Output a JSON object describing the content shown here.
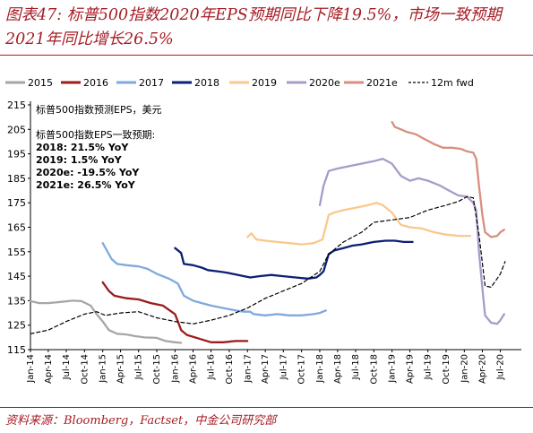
{
  "title": "图表47: 标普500指数2020年EPS预期同比下降19.5%，市场一致预期2021年同比增长26.5%",
  "source": "资料来源：Bloomberg，Factset，中金公司研究部",
  "chart_data": {
    "type": "line",
    "ylabel": "标普500指数预测EPS，美元",
    "ylim": [
      115,
      215
    ],
    "yticks": [
      115,
      125,
      135,
      145,
      155,
      165,
      175,
      185,
      195,
      205,
      215
    ],
    "xticks": [
      "Jan-14",
      "Apr-14",
      "Jul-14",
      "Oct-14",
      "Jan-15",
      "Apr-15",
      "Jul-15",
      "Oct-15",
      "Jan-16",
      "Apr-16",
      "Jul-16",
      "Oct-16",
      "Jan-17",
      "Apr-17",
      "Jul-17",
      "Oct-17",
      "Jan-18",
      "Apr-18",
      "Jul-18",
      "Oct-18",
      "Jan-19",
      "Apr-19",
      "Jul-19",
      "Oct-19",
      "Jan-20",
      "Apr-20",
      "Jul-20"
    ],
    "grid": false,
    "legend_position": "top",
    "annotation": {
      "title": "标普500指数EPS一致预期:",
      "lines": [
        "2018: 21.5% YoY",
        "2019: 1.5% YoY",
        "2020e: -19.5% YoY",
        "2021e: 26.5% YoY"
      ]
    },
    "series": [
      {
        "name": "2015",
        "color": "#a6a6a6",
        "dash": false,
        "points": [
          [
            "2014-01-01",
            134.8
          ],
          [
            "2014-02-15",
            134.0
          ],
          [
            "2014-04-01",
            134.0
          ],
          [
            "2014-06-01",
            134.5
          ],
          [
            "2014-08-01",
            135.0
          ],
          [
            "2014-09-15",
            134.8
          ],
          [
            "2014-11-01",
            133.0
          ],
          [
            "2014-12-01",
            129.5
          ],
          [
            "2015-01-01",
            126.5
          ],
          [
            "2015-02-01",
            123.0
          ],
          [
            "2015-03-15",
            121.5
          ],
          [
            "2015-05-01",
            121.2
          ],
          [
            "2015-06-15",
            120.5
          ],
          [
            "2015-08-01",
            120.0
          ],
          [
            "2015-10-01",
            119.8
          ],
          [
            "2015-11-15",
            118.5
          ],
          [
            "2015-12-31",
            118.0
          ],
          [
            "2016-01-31",
            117.8
          ]
        ]
      },
      {
        "name": "2016",
        "color": "#9c1b1b",
        "dash": false,
        "points": [
          [
            "2015-01-01",
            142.5
          ],
          [
            "2015-02-01",
            139.0
          ],
          [
            "2015-03-01",
            137.0
          ],
          [
            "2015-05-01",
            136.0
          ],
          [
            "2015-07-01",
            135.5
          ],
          [
            "2015-09-01",
            134.0
          ],
          [
            "2015-11-01",
            133.0
          ],
          [
            "2016-01-01",
            129.5
          ],
          [
            "2016-02-01",
            123.0
          ],
          [
            "2016-03-01",
            121.0
          ],
          [
            "2016-05-01",
            119.5
          ],
          [
            "2016-07-01",
            118.0
          ],
          [
            "2016-09-01",
            118.0
          ],
          [
            "2016-11-01",
            118.5
          ],
          [
            "2016-12-31",
            118.5
          ]
        ]
      },
      {
        "name": "2017",
        "color": "#7fa9dc",
        "dash": false,
        "points": [
          [
            "2015-01-01",
            158.5
          ],
          [
            "2015-02-15",
            152.0
          ],
          [
            "2015-03-15",
            150.0
          ],
          [
            "2015-05-01",
            149.5
          ],
          [
            "2015-07-01",
            149.0
          ],
          [
            "2015-08-15",
            148.0
          ],
          [
            "2015-10-01",
            146.0
          ],
          [
            "2015-12-01",
            144.0
          ],
          [
            "2016-01-15",
            142.0
          ],
          [
            "2016-02-15",
            137.0
          ],
          [
            "2016-04-01",
            135.0
          ],
          [
            "2016-05-15",
            134.0
          ],
          [
            "2016-07-01",
            133.0
          ],
          [
            "2016-09-01",
            132.0
          ],
          [
            "2016-11-01",
            131.0
          ],
          [
            "2016-12-15",
            130.5
          ],
          [
            "2017-01-15",
            130.5
          ],
          [
            "2017-02-01",
            129.5
          ],
          [
            "2017-04-01",
            129.0
          ],
          [
            "2017-06-01",
            129.5
          ],
          [
            "2017-08-01",
            129.0
          ],
          [
            "2017-10-01",
            129.0
          ],
          [
            "2017-12-01",
            129.5
          ],
          [
            "2018-01-01",
            130.0
          ],
          [
            "2018-02-01",
            131.0
          ]
        ]
      },
      {
        "name": "2018",
        "color": "#0b1f75",
        "dash": false,
        "points": [
          [
            "2016-01-01",
            156.5
          ],
          [
            "2016-02-01",
            154.5
          ],
          [
            "2016-02-15",
            150.0
          ],
          [
            "2016-04-01",
            149.5
          ],
          [
            "2016-05-15",
            148.5
          ],
          [
            "2016-06-15",
            147.5
          ],
          [
            "2016-08-01",
            147.0
          ],
          [
            "2016-09-15",
            146.5
          ],
          [
            "2016-11-15",
            145.5
          ],
          [
            "2016-12-15",
            145.0
          ],
          [
            "2017-01-15",
            144.5
          ],
          [
            "2017-03-01",
            145.0
          ],
          [
            "2017-05-01",
            145.5
          ],
          [
            "2017-07-01",
            145.0
          ],
          [
            "2017-09-01",
            144.5
          ],
          [
            "2017-11-01",
            144.0
          ],
          [
            "2017-12-15",
            144.5
          ],
          [
            "2018-01-01",
            145.5
          ],
          [
            "2018-01-20",
            147.0
          ],
          [
            "2018-02-15",
            154.0
          ],
          [
            "2018-03-15",
            155.5
          ],
          [
            "2018-05-01",
            156.5
          ],
          [
            "2018-06-15",
            157.5
          ],
          [
            "2018-08-01",
            158.0
          ],
          [
            "2018-10-01",
            159.0
          ],
          [
            "2018-12-01",
            159.5
          ],
          [
            "2019-01-15",
            159.5
          ],
          [
            "2019-03-01",
            159.0
          ],
          [
            "2019-04-15",
            159.0
          ]
        ]
      },
      {
        "name": "2019",
        "color": "#fac88b",
        "dash": false,
        "points": [
          [
            "2017-01-01",
            161.0
          ],
          [
            "2017-01-20",
            162.5
          ],
          [
            "2017-02-15",
            160.0
          ],
          [
            "2017-04-01",
            159.5
          ],
          [
            "2017-06-01",
            159.0
          ],
          [
            "2017-08-01",
            158.5
          ],
          [
            "2017-10-01",
            158.0
          ],
          [
            "2017-12-01",
            158.5
          ],
          [
            "2018-01-15",
            160.0
          ],
          [
            "2018-02-15",
            170.0
          ],
          [
            "2018-03-15",
            171.0
          ],
          [
            "2018-05-01",
            172.0
          ],
          [
            "2018-07-01",
            173.0
          ],
          [
            "2018-09-01",
            174.0
          ],
          [
            "2018-10-15",
            175.0
          ],
          [
            "2018-11-15",
            174.0
          ],
          [
            "2018-12-31",
            171.0
          ],
          [
            "2019-02-15",
            166.0
          ],
          [
            "2019-04-01",
            165.0
          ],
          [
            "2019-06-01",
            164.5
          ],
          [
            "2019-08-01",
            163.0
          ],
          [
            "2019-10-01",
            162.0
          ],
          [
            "2019-12-01",
            161.5
          ],
          [
            "2020-01-31",
            161.5
          ]
        ]
      },
      {
        "name": "2020e",
        "color": "#a89bc9",
        "dash": false,
        "points": [
          [
            "2018-01-01",
            174.0
          ],
          [
            "2018-01-20",
            182.0
          ],
          [
            "2018-02-15",
            188.0
          ],
          [
            "2018-04-01",
            189.0
          ],
          [
            "2018-06-01",
            190.0
          ],
          [
            "2018-08-01",
            191.0
          ],
          [
            "2018-10-01",
            192.0
          ],
          [
            "2018-11-15",
            193.0
          ],
          [
            "2018-12-31",
            191.0
          ],
          [
            "2019-02-15",
            186.0
          ],
          [
            "2019-04-01",
            184.0
          ],
          [
            "2019-05-15",
            185.0
          ],
          [
            "2019-07-01",
            184.0
          ],
          [
            "2019-09-01",
            182.0
          ],
          [
            "2019-10-15",
            180.0
          ],
          [
            "2019-12-01",
            178.0
          ],
          [
            "2020-01-15",
            177.5
          ],
          [
            "2020-02-15",
            175.0
          ],
          [
            "2020-03-01",
            172.0
          ],
          [
            "2020-03-15",
            155.0
          ],
          [
            "2020-04-01",
            140.0
          ],
          [
            "2020-04-15",
            129.0
          ],
          [
            "2020-05-15",
            126.0
          ],
          [
            "2020-06-15",
            125.5
          ],
          [
            "2020-07-01",
            127.0
          ],
          [
            "2020-07-20",
            129.5
          ]
        ]
      },
      {
        "name": "2021e",
        "color": "#d98e80",
        "dash": false,
        "points": [
          [
            "2019-01-01",
            208.0
          ],
          [
            "2019-01-15",
            206.0
          ],
          [
            "2019-02-15",
            205.0
          ],
          [
            "2019-03-15",
            204.0
          ],
          [
            "2019-05-01",
            203.0
          ],
          [
            "2019-06-15",
            201.0
          ],
          [
            "2019-08-01",
            199.0
          ],
          [
            "2019-09-15",
            197.5
          ],
          [
            "2019-11-01",
            197.5
          ],
          [
            "2019-12-15",
            197.0
          ],
          [
            "2020-01-15",
            196.0
          ],
          [
            "2020-02-15",
            195.5
          ],
          [
            "2020-03-01",
            193.0
          ],
          [
            "2020-03-15",
            182.0
          ],
          [
            "2020-04-01",
            170.0
          ],
          [
            "2020-04-15",
            163.0
          ],
          [
            "2020-05-15",
            161.0
          ],
          [
            "2020-06-15",
            161.5
          ],
          [
            "2020-07-01",
            163.0
          ],
          [
            "2020-07-20",
            164.0
          ]
        ]
      },
      {
        "name": "12m fwd",
        "color": "#000000",
        "dash": true,
        "points": [
          [
            "2014-01-01",
            121.5
          ],
          [
            "2014-04-01",
            123.0
          ],
          [
            "2014-07-01",
            126.5
          ],
          [
            "2014-10-01",
            129.5
          ],
          [
            "2014-12-01",
            130.5
          ],
          [
            "2015-01-15",
            129.0
          ],
          [
            "2015-04-01",
            130.0
          ],
          [
            "2015-07-01",
            130.5
          ],
          [
            "2015-10-01",
            128.0
          ],
          [
            "2016-01-01",
            126.5
          ],
          [
            "2016-04-01",
            125.5
          ],
          [
            "2016-07-01",
            127.0
          ],
          [
            "2016-10-01",
            129.0
          ],
          [
            "2017-01-01",
            132.0
          ],
          [
            "2017-04-01",
            136.0
          ],
          [
            "2017-07-01",
            139.0
          ],
          [
            "2017-10-01",
            142.0
          ],
          [
            "2018-01-01",
            147.0
          ],
          [
            "2018-02-15",
            154.0
          ],
          [
            "2018-05-01",
            159.0
          ],
          [
            "2018-08-01",
            163.0
          ],
          [
            "2018-10-01",
            167.0
          ],
          [
            "2019-01-01",
            168.0
          ],
          [
            "2019-04-01",
            169.0
          ],
          [
            "2019-07-01",
            172.0
          ],
          [
            "2019-10-01",
            174.0
          ],
          [
            "2019-12-01",
            175.5
          ],
          [
            "2020-01-15",
            177.5
          ],
          [
            "2020-02-15",
            177.0
          ],
          [
            "2020-03-15",
            162.0
          ],
          [
            "2020-04-15",
            141.0
          ],
          [
            "2020-05-15",
            140.5
          ],
          [
            "2020-06-15",
            144.0
          ],
          [
            "2020-07-01",
            146.0
          ],
          [
            "2020-07-25",
            151.0
          ]
        ]
      }
    ]
  }
}
